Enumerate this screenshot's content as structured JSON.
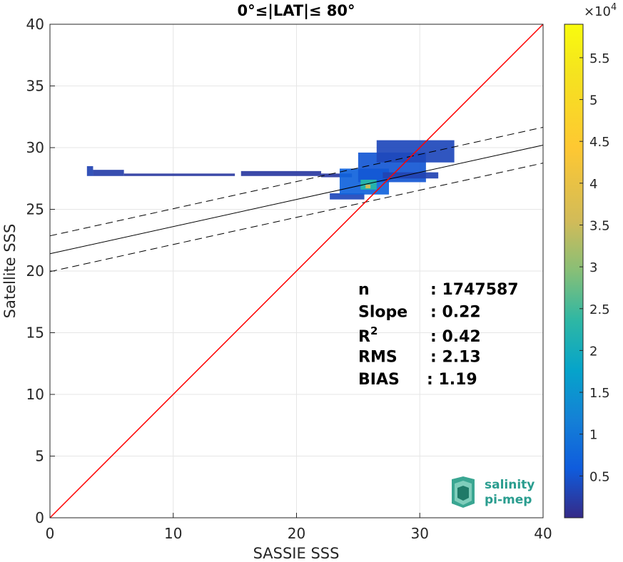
{
  "chart_data": {
    "type": "heatmap",
    "title": "0°≤|LAT|≤ 80°",
    "xlabel": "SASSIE SSS",
    "ylabel": "Satellite SSS",
    "xlim": [
      0,
      40
    ],
    "ylim": [
      0,
      40
    ],
    "xticks": [
      "0",
      "10",
      "20",
      "30",
      "40"
    ],
    "yticks": [
      "0",
      "5",
      "10",
      "15",
      "20",
      "25",
      "30",
      "35",
      "40"
    ],
    "grid": true,
    "colorbar": {
      "range": [
        0,
        59000
      ],
      "ticks": [
        "0.5",
        "1",
        "1.5",
        "2",
        "2.5",
        "3",
        "3.5",
        "4",
        "4.5",
        "5",
        "5.5"
      ],
      "tick_values": [
        0.5,
        1,
        1.5,
        2,
        2.5,
        3,
        3.5,
        4,
        4.5,
        5,
        5.5
      ],
      "exponent_base": "×10",
      "exponent_power": "4",
      "colormap": "parula"
    },
    "identity_line": {
      "slope": 1,
      "intercept": 0,
      "color": "#ff0000"
    },
    "fit_line": {
      "slope": 0.22,
      "intercept": 21.4,
      "color": "#000000"
    },
    "fit_bounds": [
      {
        "slope": 0.22,
        "intercept": 22.85,
        "style": "dashed"
      },
      {
        "slope": 0.22,
        "intercept": 19.95,
        "style": "dashed"
      }
    ],
    "density_regions": [
      {
        "x": [
          3.0,
          3.5
        ],
        "y": [
          27.7,
          28.5
        ],
        "level": 0.05
      },
      {
        "x": [
          3.5,
          6.0
        ],
        "y": [
          27.7,
          28.2
        ],
        "level": 0.04
      },
      {
        "x": [
          6.0,
          15.0
        ],
        "y": [
          27.7,
          27.9
        ],
        "level": 0.03
      },
      {
        "x": [
          15.5,
          22.0
        ],
        "y": [
          27.7,
          28.1
        ],
        "level": 0.03
      },
      {
        "x": [
          22.0,
          24.5
        ],
        "y": [
          27.6,
          27.9
        ],
        "level": 0.03
      },
      {
        "x": [
          22.7,
          25.5
        ],
        "y": [
          25.8,
          26.3
        ],
        "level": 0.06
      },
      {
        "x": [
          23.5,
          27.5
        ],
        "y": [
          26.2,
          28.3
        ],
        "level": 0.12
      },
      {
        "x": [
          25.0,
          30.5
        ],
        "y": [
          27.2,
          29.6
        ],
        "level": 0.09
      },
      {
        "x": [
          26.5,
          32.8
        ],
        "y": [
          28.8,
          30.6
        ],
        "level": 0.06
      },
      {
        "x": [
          27.0,
          31.5
        ],
        "y": [
          27.5,
          28.0
        ],
        "level": 0.05
      },
      {
        "x": [
          25.2,
          26.5
        ],
        "y": [
          26.6,
          27.4
        ],
        "level": 0.38
      },
      {
        "x": [
          25.6,
          26.0
        ],
        "y": [
          26.7,
          27.0
        ],
        "level": 0.6
      }
    ],
    "stats": [
      {
        "label": "n",
        "value": ": 1747587"
      },
      {
        "label": "Slope",
        "value": ": 0.22"
      },
      {
        "label": "R",
        "sup": "2",
        "value": ": 0.42"
      },
      {
        "label": "RMS",
        "value": ": 2.13"
      },
      {
        "label": "BIAS",
        "value": ": 1.19"
      }
    ]
  },
  "logo": {
    "line1": "salinity",
    "line2": "pi-mep"
  }
}
